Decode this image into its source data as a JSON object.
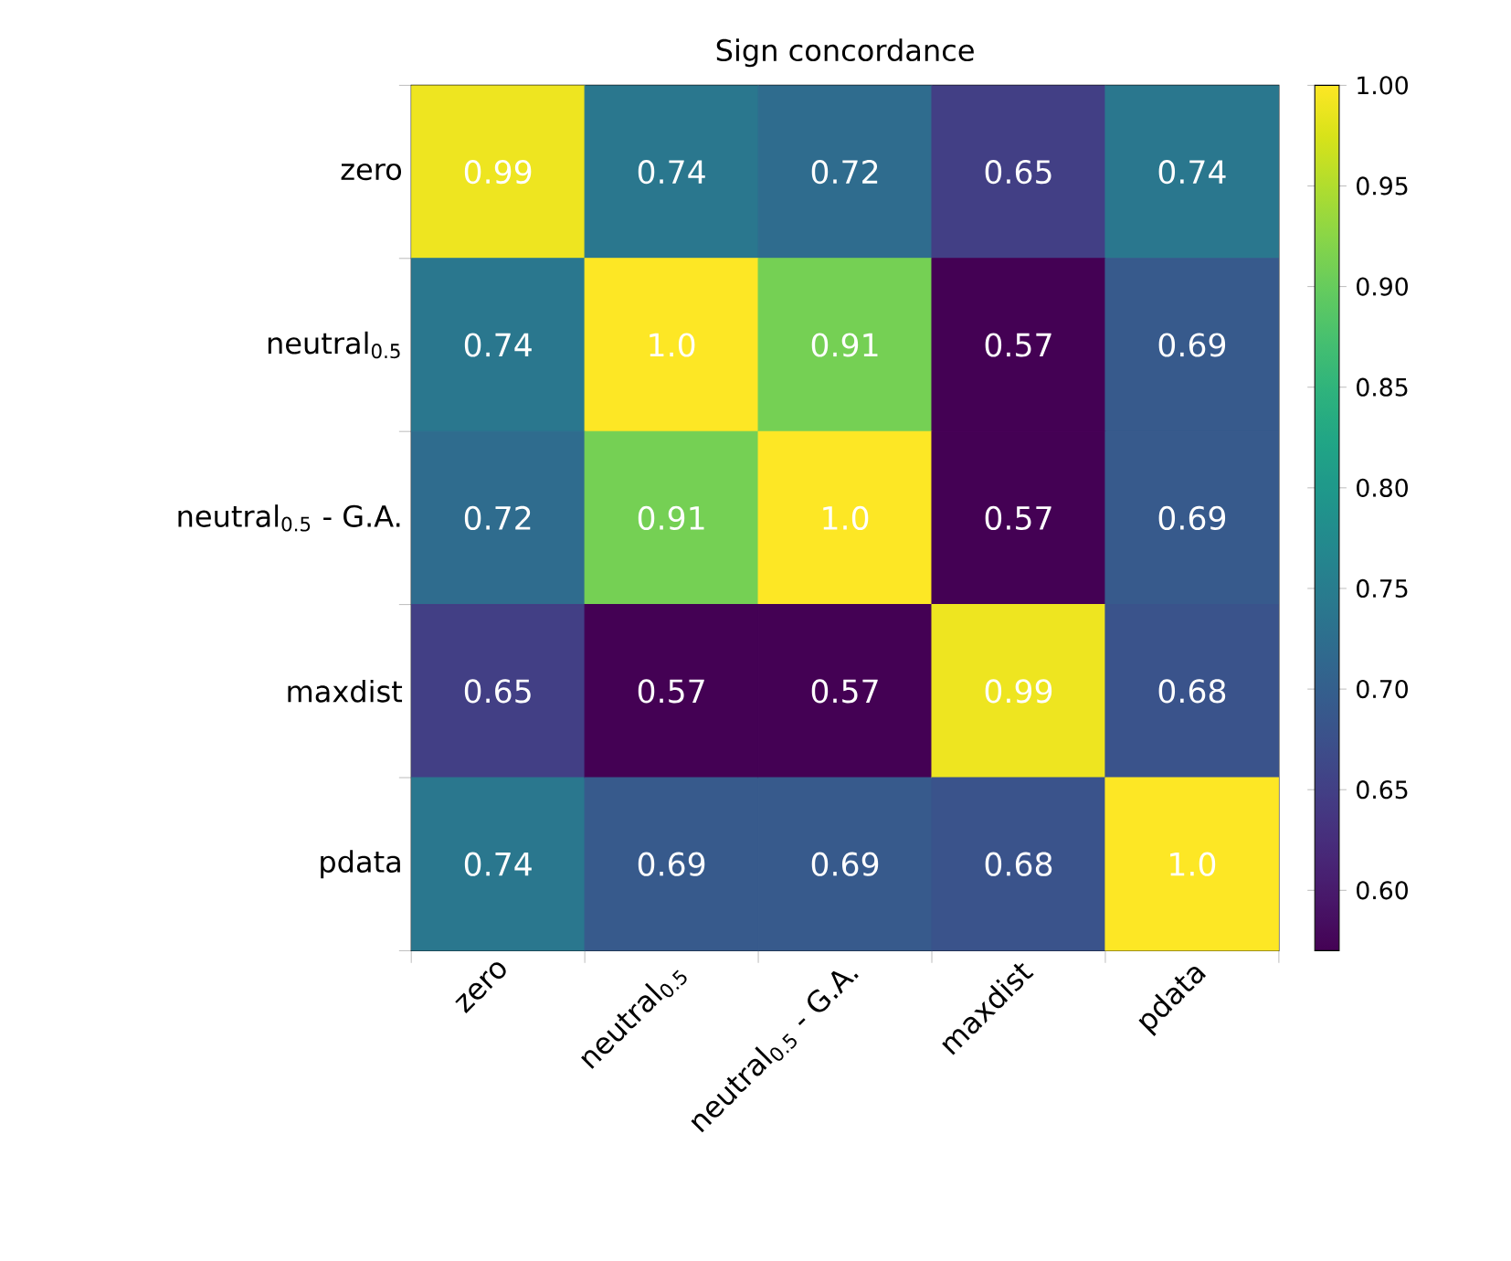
{
  "chart_data": {
    "type": "heatmap",
    "title": "Sign concordance",
    "categories": [
      "zero",
      "neutral$_{0.5}$",
      "neutral$_{0.5}$ - G.A.",
      "maxdist",
      "pdata"
    ],
    "y_categories": [
      "zero",
      "neutral$_{0.5}$",
      "neutral$_{0.5}$ - G.A.",
      "maxdist",
      "pdata"
    ],
    "cells": [
      [
        0.99,
        0.74,
        0.72,
        0.65,
        0.74
      ],
      [
        0.74,
        1.0,
        0.91,
        0.57,
        0.69
      ],
      [
        0.72,
        0.91,
        1.0,
        0.57,
        0.69
      ],
      [
        0.65,
        0.57,
        0.57,
        0.99,
        0.68
      ],
      [
        0.74,
        0.69,
        0.69,
        0.68,
        1.0
      ]
    ],
    "cell_labels": [
      [
        "0.99",
        "0.74",
        "0.72",
        "0.65",
        "0.74"
      ],
      [
        "0.74",
        "1.0",
        "0.91",
        "0.57",
        "0.69"
      ],
      [
        "0.72",
        "0.91",
        "1.0",
        "0.57",
        "0.69"
      ],
      [
        "0.65",
        "0.57",
        "0.57",
        "0.99",
        "0.68"
      ],
      [
        "0.74",
        "0.69",
        "0.69",
        "0.68",
        "1.0"
      ]
    ],
    "clim": [
      0.57,
      1.0
    ],
    "cticks": [
      {
        "value": 0.6,
        "label": "0.60"
      },
      {
        "value": 0.65,
        "label": "0.65"
      },
      {
        "value": 0.7,
        "label": "0.70"
      },
      {
        "value": 0.75,
        "label": "0.75"
      },
      {
        "value": 0.8,
        "label": "0.80"
      },
      {
        "value": 0.85,
        "label": "0.85"
      },
      {
        "value": 0.9,
        "label": "0.90"
      },
      {
        "value": 0.95,
        "label": "0.95"
      },
      {
        "value": 1.0,
        "label": "1.00"
      }
    ]
  }
}
